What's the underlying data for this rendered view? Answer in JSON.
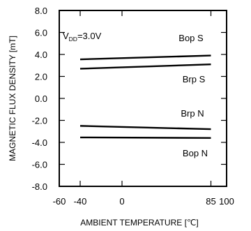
{
  "chart_data": {
    "type": "line",
    "title": "",
    "xlabel": "AMBIENT TEMPERATURE [℃]",
    "ylabel": "MAGNETIC FLUX DENSITY [mT]",
    "xlim": [
      -60,
      100
    ],
    "ylim": [
      -8.0,
      8.0
    ],
    "x_ticks": [
      -60,
      -40,
      0,
      85,
      100
    ],
    "x_tick_labels": [
      "-60",
      "-40",
      "0",
      "85",
      "100"
    ],
    "y_ticks": [
      8.0,
      6.0,
      4.0,
      2.0,
      0.0,
      -2.0,
      -4.0,
      -6.0,
      -8.0
    ],
    "y_tick_labels": [
      "8.0",
      "6.0",
      "4.0",
      "2.0",
      "0.0",
      "-2.0",
      "-4.0",
      "-6.0",
      "-8.0"
    ],
    "grid": false,
    "condition": {
      "base": "V",
      "sub": "DD",
      "rest": "=3.0V"
    },
    "series": [
      {
        "name": "Bop S",
        "x": [
          -40,
          85
        ],
        "y": [
          3.55,
          3.9
        ]
      },
      {
        "name": "Brp S",
        "x": [
          -40,
          85
        ],
        "y": [
          2.7,
          3.1
        ]
      },
      {
        "name": "Brp N",
        "x": [
          -40,
          85
        ],
        "y": [
          -2.5,
          -2.8
        ]
      },
      {
        "name": "Bop N",
        "x": [
          -40,
          85
        ],
        "y": [
          -3.55,
          -3.6
        ]
      }
    ]
  }
}
